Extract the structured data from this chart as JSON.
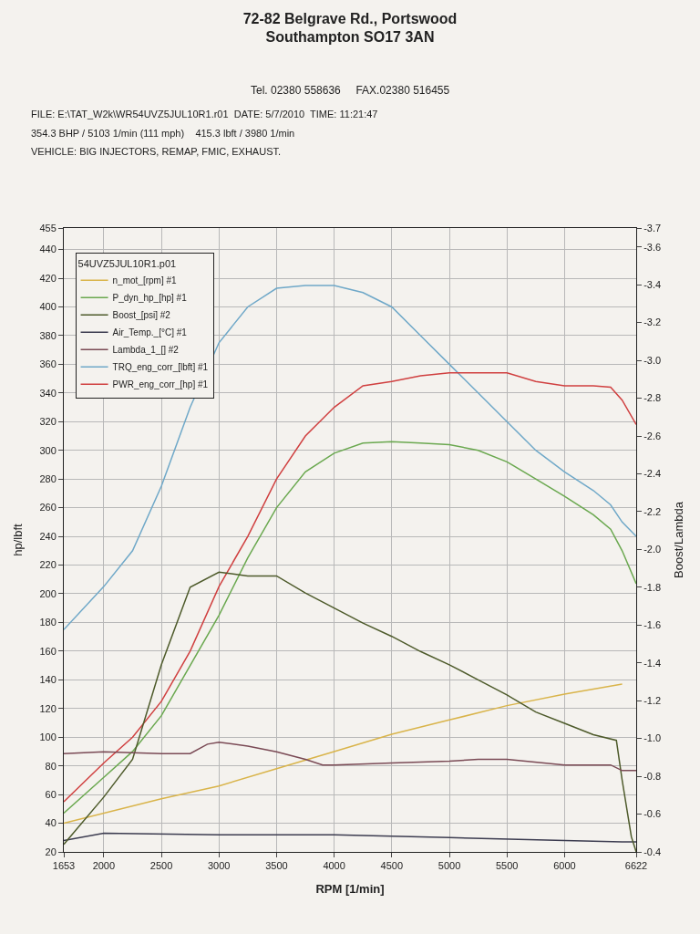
{
  "chart_data": {
    "type": "line",
    "title": "72-82 Belgrave Rd., Portswood\nSouthampton SO17 3AN",
    "subtitle": "Tel. 02380 558636     FAX.02380 516455",
    "annotations": [
      "FILE: E:\\TAT_W2k\\WR54UVZ5JUL10R1.r01  DATE: 5/7/2010  TIME: 11:21:47",
      "354.3 BHP / 5103 1/min (111 mph)    415.3 lbft / 3980 1/min",
      "VEHICLE: BIG INJECTORS, REMAP, FMIC, EXHAUST."
    ],
    "xlabel": "RPM [1/min]",
    "ylabel": "hp/lbft",
    "y2label": "Boost/Lambda",
    "legend_title": "54UVZ5JUL10R1.p01",
    "xlim": [
      1653,
      6622
    ],
    "xticks": [
      1653,
      2000,
      2500,
      3000,
      3500,
      4000,
      4500,
      5000,
      5500,
      6000,
      6622
    ],
    "ylim": [
      20,
      455
    ],
    "yticks": [
      20,
      40,
      60,
      80,
      100,
      120,
      140,
      160,
      180,
      200,
      220,
      240,
      260,
      280,
      300,
      320,
      340,
      360,
      380,
      400,
      420,
      440,
      455
    ],
    "y2lim": [
      -0.4,
      -3.7
    ],
    "y2ticks": [
      -0.4,
      -0.6,
      -0.8,
      {
        "value": -1.0,
        "label": "-1.0"
      },
      -1.2,
      -1.4,
      -1.6,
      -1.8,
      {
        "value": -2.0,
        "label": "-2.0"
      },
      -2.2,
      -2.4,
      -2.6,
      -2.8,
      {
        "value": -3.0,
        "label": "-3.0"
      },
      -3.2,
      -3.4,
      -3.6,
      -3.7
    ],
    "grid": true,
    "legend": "top left",
    "marker": "none",
    "line_style": "solid",
    "series": [
      {
        "name": "n_mot_[rpm] #1",
        "color": "#d9b44a",
        "x": [
          1653,
          2500,
          3000,
          3500,
          4000,
          4500,
          5000,
          5500,
          6000,
          6500
        ],
        "values": [
          40,
          57,
          66,
          78,
          90,
          102,
          112,
          122,
          130,
          137
        ]
      },
      {
        "name": "P_dyn_hp_[hp] #1",
        "color": "#6aa84f",
        "x": [
          1653,
          2000,
          2250,
          2500,
          2750,
          3000,
          3250,
          3500,
          3750,
          4000,
          4250,
          4500,
          4750,
          5000,
          5250,
          5500,
          5750,
          6000,
          6250,
          6400,
          6500,
          6622
        ],
        "values": [
          47,
          72,
          90,
          115,
          150,
          185,
          225,
          260,
          285,
          298,
          305,
          306,
          305,
          304,
          300,
          292,
          280,
          268,
          255,
          245,
          230,
          207
        ]
      },
      {
        "name": "Boost_[psi] #2",
        "color": "#4d5a2a",
        "axis": "y2",
        "x": [
          1653,
          2000,
          2250,
          2500,
          2750,
          3000,
          3250,
          3500,
          3750,
          4000,
          4250,
          4500,
          4750,
          5000,
          5250,
          5500,
          5750,
          6000,
          6250,
          6450,
          6500,
          6580,
          6622
        ],
        "values": [
          -0.44,
          -0.69,
          -0.89,
          -1.39,
          -1.8,
          -1.88,
          -1.86,
          -1.86,
          -1.77,
          -1.69,
          -1.61,
          -1.54,
          -1.46,
          -1.39,
          -1.31,
          -1.23,
          -1.14,
          -1.08,
          -1.02,
          -0.99,
          -0.78,
          -0.48,
          -0.4
        ]
      },
      {
        "name": "Air_Temp._[°C] #1",
        "color": "#3c3c50",
        "x": [
          1653,
          2000,
          3000,
          4000,
          5000,
          6000,
          6500,
          6622
        ],
        "values": [
          28,
          33,
          32,
          32,
          30,
          28,
          27,
          27
        ]
      },
      {
        "name": "Lambda_1_[] #2",
        "color": "#7a4a55",
        "axis": "y2",
        "x": [
          1653,
          2000,
          2500,
          2750,
          2900,
          3000,
          3250,
          3500,
          3750,
          3900,
          4000,
          4500,
          5000,
          5250,
          5500,
          6000,
          6400,
          6500,
          6622
        ],
        "values": [
          -0.92,
          -0.93,
          -0.92,
          -0.92,
          -0.97,
          -0.98,
          -0.96,
          -0.93,
          -0.89,
          -0.86,
          -0.86,
          -0.87,
          -0.88,
          -0.89,
          -0.89,
          -0.86,
          -0.86,
          -0.83,
          -0.83
        ]
      },
      {
        "name": "TRQ_eng_corr_[lbft] #1",
        "color": "#6fa8c8",
        "x": [
          1653,
          2000,
          2250,
          2500,
          2750,
          3000,
          3250,
          3500,
          3750,
          4000,
          4250,
          4500,
          4750,
          5000,
          5250,
          5500,
          5750,
          6000,
          6250,
          6400,
          6500,
          6622
        ],
        "values": [
          175,
          205,
          230,
          275,
          330,
          375,
          400,
          413,
          415,
          415,
          410,
          400,
          380,
          360,
          340,
          320,
          300,
          285,
          272,
          262,
          250,
          240
        ]
      },
      {
        "name": "PWR_eng_corr_[hp] #1",
        "color": "#d04040",
        "x": [
          1653,
          2000,
          2250,
          2500,
          2750,
          3000,
          3250,
          3500,
          3750,
          4000,
          4250,
          4500,
          4750,
          5000,
          5250,
          5500,
          5750,
          6000,
          6250,
          6400,
          6500,
          6622
        ],
        "values": [
          55,
          82,
          100,
          125,
          160,
          205,
          240,
          280,
          310,
          330,
          345,
          348,
          352,
          354,
          354,
          354,
          348,
          345,
          345,
          344,
          335,
          318
        ]
      }
    ]
  }
}
